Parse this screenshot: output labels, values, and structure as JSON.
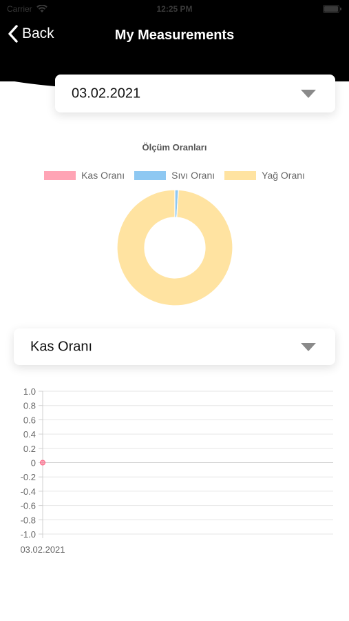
{
  "status_bar": {
    "left": "Carrier",
    "time": "12:25 PM"
  },
  "nav": {
    "back_label": "Back",
    "title": "My Measurements"
  },
  "date_selector": {
    "value": "03.02.2021"
  },
  "pie": {
    "title": "Ölçüm Oranları",
    "legend": [
      {
        "label": "Kas Oranı",
        "color": "#ffa4b5"
      },
      {
        "label": "Sıvı Oranı",
        "color": "#8ec8f2"
      },
      {
        "label": "Yağ Oranı",
        "color": "#ffe3a1"
      }
    ]
  },
  "metric_selector": {
    "value": "Kas Oranı"
  },
  "chart_data": [
    {
      "type": "pie",
      "title": "Ölçüm Oranları",
      "categories": [
        "Kas Oranı",
        "Sıvı Oranı",
        "Yağ Oranı"
      ],
      "values": [
        0,
        1,
        99
      ],
      "colors": [
        "#ffa4b5",
        "#8ec8f2",
        "#ffe3a1"
      ],
      "legend": "top"
    },
    {
      "type": "line",
      "x": [
        "03.02.2021"
      ],
      "series": [
        {
          "values": [
            0
          ],
          "color": "#ff6384"
        }
      ],
      "ylim": [
        -1.0,
        1.0
      ],
      "yticks": [
        "1.0",
        "0.8",
        "0.6",
        "0.4",
        "0.2",
        "0",
        "-0.2",
        "-0.4",
        "-0.6",
        "-0.8",
        "-1.0"
      ],
      "grid": true
    }
  ]
}
